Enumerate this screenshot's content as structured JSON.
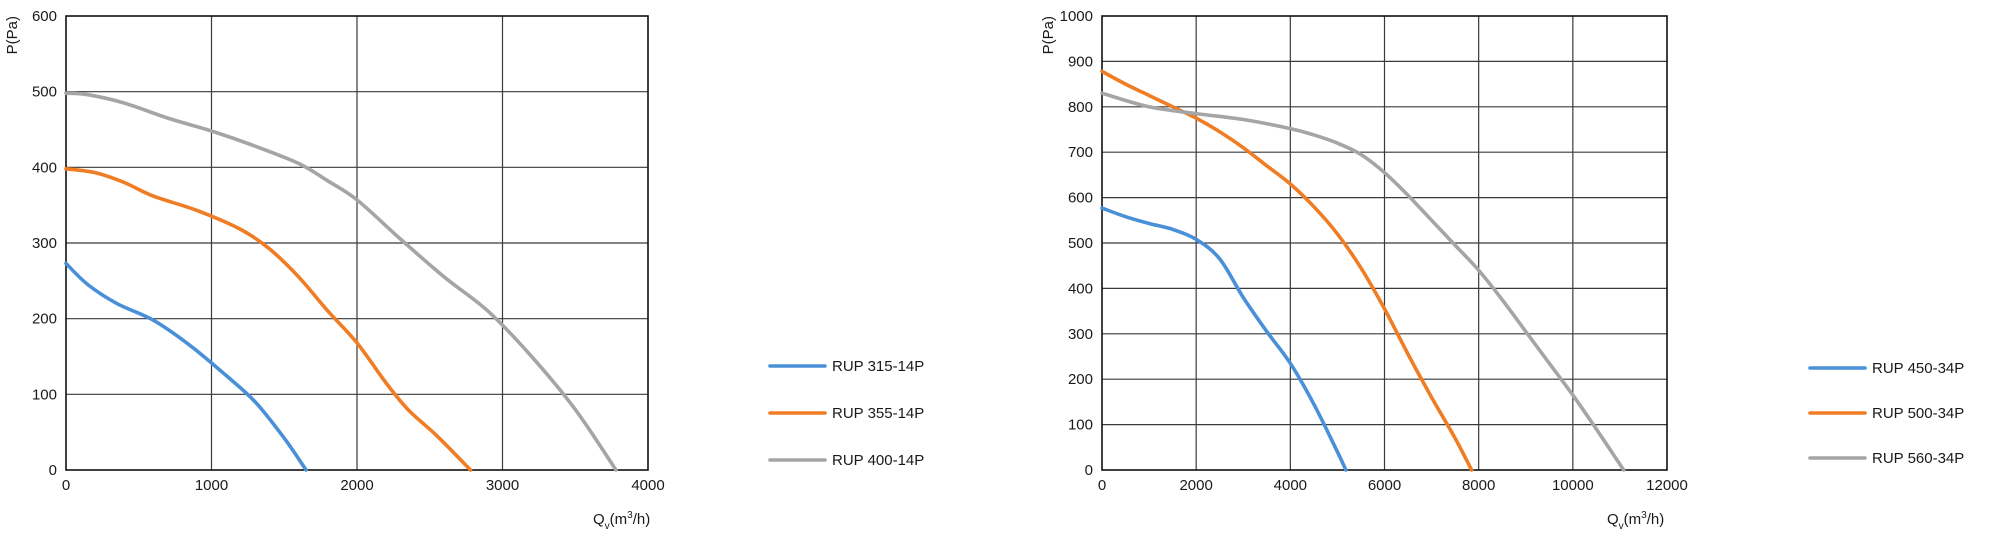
{
  "chart_data": [
    {
      "type": "line",
      "title": "",
      "xlabel": "Q",
      "xlabel_sub": "v",
      "xlabel_unit_pre": "(m",
      "xlabel_unit_sup": "3",
      "xlabel_unit_post": "/h)",
      "ylabel": "P(Pa)",
      "xlim": [
        0,
        4000
      ],
      "ylim": [
        0,
        600
      ],
      "xticks": [
        "0",
        "1000",
        "2000",
        "3000",
        "4000"
      ],
      "yticks": [
        "0",
        "100",
        "200",
        "300",
        "400",
        "500",
        "600"
      ],
      "grid": true,
      "legend_position": "right",
      "series": [
        {
          "name": "RUP 315-14P",
          "color": "#4a90d9",
          "x": [
            0,
            150,
            350,
            600,
            850,
            1100,
            1300,
            1500,
            1650
          ],
          "y": [
            273,
            245,
            220,
            198,
            165,
            125,
            90,
            42,
            0
          ]
        },
        {
          "name": "RUP 355-14P",
          "color": "#f07d23",
          "x": [
            0,
            200,
            400,
            600,
            900,
            1200,
            1400,
            1600,
            1800,
            2000,
            2200,
            2350,
            2550,
            2780
          ],
          "y": [
            398,
            393,
            380,
            362,
            343,
            318,
            292,
            255,
            210,
            168,
            115,
            80,
            45,
            0
          ]
        },
        {
          "name": "RUP 400-14P",
          "color": "#a5a5a5",
          "x": [
            0,
            150,
            400,
            700,
            1000,
            1300,
            1600,
            1800,
            2000,
            2300,
            2600,
            2900,
            3200,
            3500,
            3780
          ],
          "y": [
            498,
            496,
            485,
            465,
            448,
            428,
            405,
            382,
            357,
            305,
            255,
            210,
            150,
            80,
            0
          ]
        }
      ]
    },
    {
      "type": "line",
      "title": "",
      "xlabel": "Q",
      "xlabel_sub": "v",
      "xlabel_unit_pre": "(m",
      "xlabel_unit_sup": "3",
      "xlabel_unit_post": "/h)",
      "ylabel": "P(Pa)",
      "xlim": [
        0,
        12000
      ],
      "ylim": [
        0,
        1000
      ],
      "xticks": [
        "0",
        "2000",
        "4000",
        "6000",
        "8000",
        "10000",
        "12000"
      ],
      "yticks": [
        "0",
        "100",
        "200",
        "300",
        "400",
        "500",
        "600",
        "700",
        "800",
        "900",
        "1000"
      ],
      "grid": true,
      "legend_position": "right",
      "series": [
        {
          "name": "RUP 450-34P",
          "color": "#4a90d9",
          "x": [
            0,
            500,
            1000,
            1500,
            2000,
            2500,
            3000,
            3500,
            4000,
            4500,
            5000,
            5180
          ],
          "y": [
            577,
            558,
            543,
            530,
            508,
            465,
            380,
            305,
            235,
            145,
            40,
            0
          ]
        },
        {
          "name": "RUP 500-34P",
          "color": "#f07d23",
          "x": [
            0,
            500,
            1000,
            1500,
            2000,
            2500,
            3000,
            3500,
            4000,
            4500,
            5000,
            5500,
            6000,
            6500,
            7000,
            7500,
            7850
          ],
          "y": [
            878,
            850,
            825,
            800,
            775,
            745,
            710,
            670,
            630,
            580,
            520,
            445,
            355,
            255,
            160,
            70,
            0
          ]
        },
        {
          "name": "RUP 560-34P",
          "color": "#a5a5a5",
          "x": [
            0,
            1000,
            2000,
            3000,
            4000,
            4500,
            5000,
            5500,
            6000,
            6500,
            7000,
            7500,
            8000,
            8500,
            9000,
            9500,
            10000,
            10500,
            11080
          ],
          "y": [
            830,
            800,
            785,
            772,
            752,
            738,
            720,
            695,
            655,
            605,
            550,
            495,
            440,
            375,
            305,
            235,
            165,
            90,
            0
          ]
        }
      ]
    }
  ]
}
